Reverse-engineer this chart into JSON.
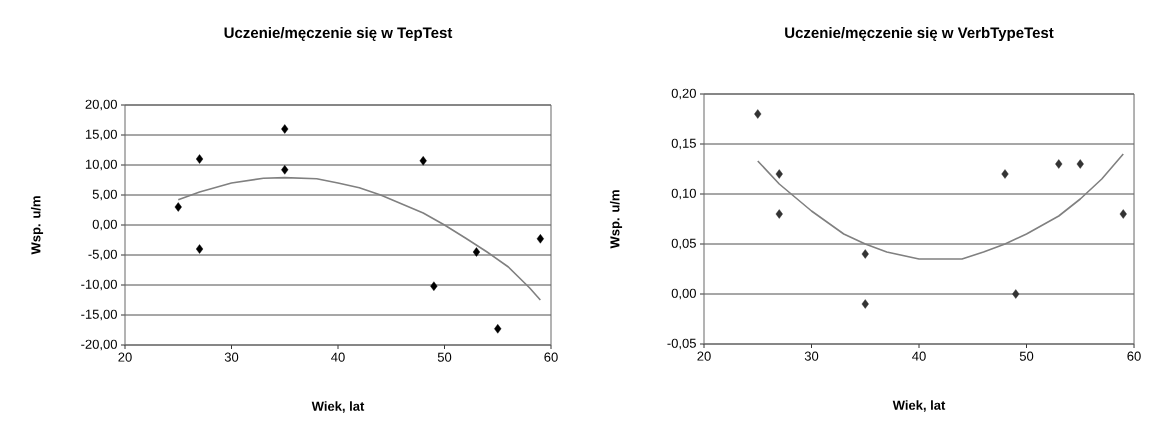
{
  "chart_data": [
    {
      "type": "scatter",
      "title": "Uczenie/męczenie się w TepTest",
      "xlabel": "Wiek, lat",
      "ylabel": "Wsp. u/m",
      "xlim": [
        20,
        60
      ],
      "xticks": [
        20,
        30,
        40,
        50,
        60
      ],
      "ylim": [
        -20,
        20
      ],
      "yticks": [
        {
          "value": -20,
          "label": "-20,00"
        },
        {
          "value": -15,
          "label": "-15,00"
        },
        {
          "value": -10,
          "label": "-10,00"
        },
        {
          "value": -5,
          "label": "-5,00"
        },
        {
          "value": 0,
          "label": "0,00"
        },
        {
          "value": 5,
          "label": "5,00"
        },
        {
          "value": 10,
          "label": "10,00"
        },
        {
          "value": 15,
          "label": "15,00"
        },
        {
          "value": 20,
          "label": "20,00"
        }
      ],
      "grid": "y",
      "marker": "diamond",
      "series": [
        {
          "type": "scatter",
          "color": "#000000",
          "x": [
            25,
            27,
            27,
            35,
            35,
            48,
            49,
            53,
            55,
            59
          ],
          "values": [
            3,
            11,
            -4,
            16,
            9.2,
            10.7,
            -10.2,
            -4.5,
            -17.3,
            -2.3
          ]
        },
        {
          "type": "line",
          "marker": "none",
          "color": "#808080",
          "x": [
            25,
            27,
            30,
            33,
            35,
            38,
            40,
            42,
            44,
            46,
            48,
            50,
            52,
            54,
            56,
            58,
            59
          ],
          "values": [
            4.2,
            5.5,
            7,
            7.8,
            7.9,
            7.7,
            7,
            6.2,
            5,
            3.5,
            2,
            0,
            -2.2,
            -4.5,
            -7,
            -10.5,
            -12.5
          ]
        }
      ]
    },
    {
      "type": "scatter",
      "title": "Uczenie/męczenie się w VerbTypeTest",
      "xlabel": "Wiek, lat",
      "ylabel": "Wsp. u/m",
      "xlim": [
        20,
        60
      ],
      "xticks": [
        20,
        30,
        40,
        50,
        60
      ],
      "ylim": [
        -0.05,
        0.2
      ],
      "yticks": [
        {
          "value": -0.05,
          "label": "-0,05"
        },
        {
          "value": 0,
          "label": "0,00"
        },
        {
          "value": 0.05,
          "label": "0,05"
        },
        {
          "value": 0.1,
          "label": "0,10"
        },
        {
          "value": 0.15,
          "label": "0,15"
        },
        {
          "value": 0.2,
          "label": "0,20"
        }
      ],
      "grid": "y",
      "marker": "diamond",
      "series": [
        {
          "type": "scatter",
          "color": "#333333",
          "x": [
            25,
            27,
            27,
            35,
            35,
            48,
            49,
            53,
            55,
            59
          ],
          "values": [
            0.18,
            0.12,
            0.08,
            0.04,
            -0.01,
            0.12,
            0,
            0.13,
            0.13,
            0.08
          ]
        },
        {
          "type": "line",
          "marker": "none",
          "color": "#808080",
          "x": [
            25,
            27,
            30,
            33,
            35,
            37,
            40,
            42,
            44,
            46,
            48,
            50,
            53,
            55,
            57,
            59
          ],
          "values": [
            0.133,
            0.11,
            0.083,
            0.06,
            0.05,
            0.042,
            0.035,
            0.035,
            0.035,
            0.042,
            0.05,
            0.06,
            0.078,
            0.095,
            0.115,
            0.14
          ]
        }
      ]
    }
  ]
}
